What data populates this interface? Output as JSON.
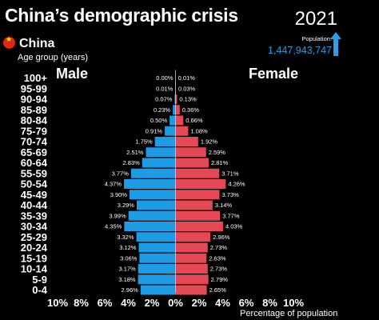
{
  "header": {
    "title": "China’s demographic crisis",
    "year": "2021",
    "country": "China",
    "age_group_label": "Age group (years)",
    "population_label": "Population:",
    "population_value": "1,447,943,747"
  },
  "colors": {
    "male": "#1e9be5",
    "female": "#e74855",
    "population": "#2f9ee0",
    "flag": "#de2910"
  },
  "chart_data": {
    "type": "bar",
    "orientation": "horizontal-population-pyramid",
    "title": "China’s demographic crisis",
    "xlabel": "Percentage of population",
    "ylabel": "Age group (years)",
    "xlim": [
      -10,
      10
    ],
    "x_ticks": [
      "10%",
      "8%",
      "6%",
      "4%",
      "2%",
      "0%",
      "2%",
      "4%",
      "6%",
      "8%",
      "10%"
    ],
    "categories": [
      "100+",
      "95-99",
      "90-94",
      "85-89",
      "80-84",
      "75-79",
      "70-74",
      "65-69",
      "60-64",
      "55-59",
      "50-54",
      "45-49",
      "40-44",
      "35-39",
      "30-34",
      "25-29",
      "20-24",
      "15-19",
      "10-14",
      "5-9",
      "0-4"
    ],
    "series": [
      {
        "name": "Male",
        "values": [
          0.0,
          0.01,
          0.07,
          0.23,
          0.5,
          0.91,
          1.75,
          2.51,
          2.83,
          3.77,
          4.37,
          3.9,
          3.29,
          3.99,
          4.35,
          3.32,
          3.12,
          3.06,
          3.17,
          3.18,
          2.96
        ],
        "labels": [
          "0.00%",
          "0.01%",
          "0.07%",
          "0.23%",
          "0.50%",
          "0.91%",
          "1.75%",
          "2.51%",
          "2.83%",
          "3.77%",
          "4.37%",
          "3.90%",
          "3.29%",
          "3.99%",
          "4.35%",
          "3.32%",
          "3.12%",
          "3.06%",
          "3.17%",
          "3.18%",
          "2.96%"
        ]
      },
      {
        "name": "Female",
        "values": [
          0.01,
          0.03,
          0.13,
          0.36,
          0.66,
          1.08,
          1.92,
          2.59,
          2.81,
          3.71,
          4.26,
          3.73,
          3.14,
          3.77,
          4.03,
          2.96,
          2.73,
          2.63,
          2.73,
          2.79,
          2.65
        ],
        "labels": [
          "0.01%",
          "0.03%",
          "0.13%",
          "0.36%",
          "0.66%",
          "1.08%",
          "1.92%",
          "2.59%",
          "2.81%",
          "3.71%",
          "4.26%",
          "3.73%",
          "3.14%",
          "3.77%",
          "4.03%",
          "2.96%",
          "2.73%",
          "2.63%",
          "2.73%",
          "2.79%",
          "2.65%"
        ]
      }
    ]
  }
}
